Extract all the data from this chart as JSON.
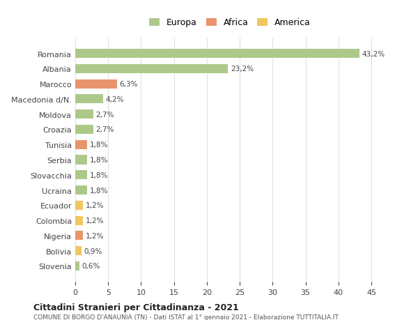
{
  "categories": [
    "Romania",
    "Albania",
    "Marocco",
    "Macedonia d/N.",
    "Moldova",
    "Croazia",
    "Tunisia",
    "Serbia",
    "Slovacchia",
    "Ucraina",
    "Ecuador",
    "Colombia",
    "Nigeria",
    "Bolivia",
    "Slovenia"
  ],
  "values": [
    43.2,
    23.2,
    6.3,
    4.2,
    2.7,
    2.7,
    1.8,
    1.8,
    1.8,
    1.8,
    1.2,
    1.2,
    1.2,
    0.9,
    0.6
  ],
  "labels": [
    "43,2%",
    "23,2%",
    "6,3%",
    "4,2%",
    "2,7%",
    "2,7%",
    "1,8%",
    "1,8%",
    "1,8%",
    "1,8%",
    "1,2%",
    "1,2%",
    "1,2%",
    "0,9%",
    "0,6%"
  ],
  "continent": [
    "Europa",
    "Europa",
    "Africa",
    "Europa",
    "Europa",
    "Europa",
    "Africa",
    "Europa",
    "Europa",
    "Europa",
    "America",
    "America",
    "Africa",
    "America",
    "Europa"
  ],
  "colors": {
    "Europa": "#adc98a",
    "Africa": "#e8956d",
    "America": "#f0c75e"
  },
  "legend": [
    "Europa",
    "Africa",
    "America"
  ],
  "legend_colors": [
    "#adc98a",
    "#e8956d",
    "#f0c75e"
  ],
  "title_bold": "Cittadini Stranieri per Cittadinanza - 2021",
  "subtitle": "COMUNE DI BORGO D'ANAUNIA (TN) - Dati ISTAT al 1° gennaio 2021 - Elaborazione TUTTITALIA.IT",
  "xlim": [
    0,
    47
  ],
  "xticks": [
    0,
    5,
    10,
    15,
    20,
    25,
    30,
    35,
    40,
    45
  ],
  "background_color": "#ffffff",
  "grid_color": "#e0e0e0"
}
